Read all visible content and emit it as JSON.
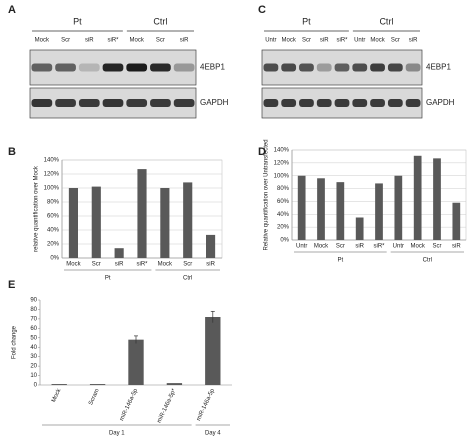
{
  "blots": [
    {
      "letter": "A",
      "groups": [
        "Pt",
        "Ctrl"
      ],
      "lanes": [
        "Mock",
        "Scr",
        "siR",
        "siR*",
        "Mock",
        "Scr",
        "siR"
      ],
      "proteins": [
        "4EBP1",
        "GAPDH"
      ]
    },
    {
      "letter": "C",
      "groups": [
        "Pt",
        "Ctrl"
      ],
      "lanes": [
        "Untr",
        "Mock",
        "Scr",
        "siR",
        "siR*",
        "Untr",
        "Mock",
        "Scr",
        "siR"
      ],
      "proteins": [
        "4EBP1",
        "GAPDH"
      ]
    }
  ],
  "chart_data": [
    {
      "type": "bar",
      "letter": "B",
      "y_label": "relative quantification over Mock",
      "categories": [
        "Mock",
        "Scr",
        "siR",
        "siR*",
        "Mock",
        "Scr",
        "siR"
      ],
      "groups": [
        "Pt",
        "Ctrl"
      ],
      "values": [
        100,
        102,
        14,
        127,
        100,
        108,
        33
      ],
      "color": "#595959",
      "ylim": [
        0,
        140
      ],
      "yticks": [
        {
          "value": 0,
          "label": "0%"
        },
        {
          "value": 20,
          "label": "20%"
        },
        {
          "value": 40,
          "label": "40%"
        },
        {
          "value": 60,
          "label": "60%"
        },
        {
          "value": 80,
          "label": "80%"
        },
        {
          "value": 100,
          "label": "100%"
        },
        {
          "value": 120,
          "label": "120%"
        },
        {
          "value": 140,
          "label": "140%"
        }
      ],
      "grid": true
    },
    {
      "type": "bar",
      "letter": "D",
      "y_label": "Relative quantification over Untransfected",
      "categories": [
        "Untr",
        "Mock",
        "Scr",
        "siR",
        "siR*",
        "Untr",
        "Mock",
        "Scr",
        "siR"
      ],
      "groups": [
        "Pt",
        "Ctrl"
      ],
      "values": [
        100,
        96,
        90,
        35,
        88,
        100,
        131,
        127,
        58
      ],
      "color": "#595959",
      "ylim": [
        0,
        140
      ],
      "yticks": [
        {
          "value": 0,
          "label": "0%"
        },
        {
          "value": 20,
          "label": "20%"
        },
        {
          "value": 40,
          "label": "40%"
        },
        {
          "value": 60,
          "label": "60%"
        },
        {
          "value": 80,
          "label": "80%"
        },
        {
          "value": 100,
          "label": "100%"
        },
        {
          "value": 120,
          "label": "120%"
        },
        {
          "value": 140,
          "label": "140%"
        }
      ],
      "grid": true
    },
    {
      "type": "bar",
      "letter": "E",
      "y_label": "Fold change",
      "categories": [
        "Mock",
        "Scram",
        "miR-146a-5p",
        "miR-146a-5p*",
        "miR-146a-5p"
      ],
      "groups": [
        "Day 1",
        "Day 4"
      ],
      "values": [
        1,
        1,
        48,
        2,
        72
      ],
      "errors": [
        0,
        0,
        4,
        0,
        6
      ],
      "color": "#595959",
      "ylim": [
        0,
        90
      ],
      "yticks": [
        0,
        10,
        20,
        30,
        40,
        50,
        60,
        70,
        80,
        90
      ],
      "grid": false
    }
  ]
}
